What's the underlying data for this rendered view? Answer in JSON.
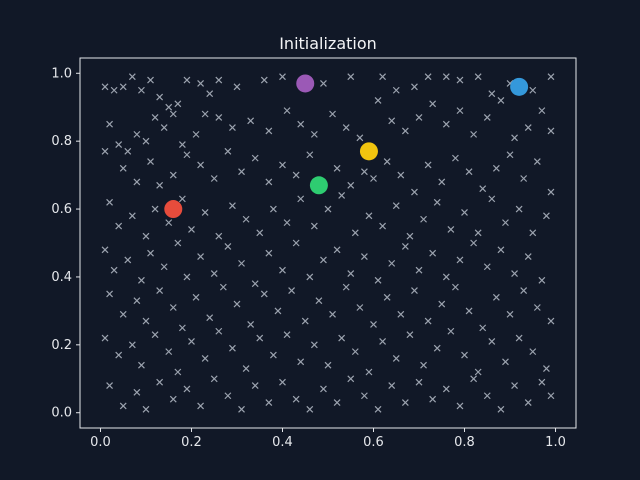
{
  "chart_data": {
    "type": "scatter",
    "title": "Initialization",
    "xlabel": "",
    "ylabel": "",
    "xlim": [
      -0.045,
      1.045
    ],
    "ylim": [
      -0.045,
      1.045
    ],
    "xticks": [
      0.0,
      0.2,
      0.4,
      0.6,
      0.8,
      1.0
    ],
    "yticks": [
      0.0,
      0.2,
      0.4,
      0.6,
      0.8,
      1.0
    ],
    "grid": false,
    "legend": "none",
    "colors": {
      "background": "#111827",
      "axes_edge": "#e5e7eb",
      "points": "#9ca3af"
    },
    "series": [
      {
        "marker": "x",
        "color": "#9ca3af",
        "points": [
          [
            0.01,
            0.96
          ],
          [
            0.03,
            0.95
          ],
          [
            0.05,
            0.96
          ],
          [
            0.07,
            0.99
          ],
          [
            0.09,
            0.95
          ],
          [
            0.11,
            0.98
          ],
          [
            0.13,
            0.93
          ],
          [
            0.15,
            0.9
          ],
          [
            0.17,
            0.91
          ],
          [
            0.19,
            0.98
          ],
          [
            0.22,
            0.97
          ],
          [
            0.24,
            0.94
          ],
          [
            0.26,
            0.98
          ],
          [
            0.3,
            0.96
          ],
          [
            0.36,
            0.98
          ],
          [
            0.4,
            0.99
          ],
          [
            0.49,
            0.97
          ],
          [
            0.55,
            0.99
          ],
          [
            0.62,
            0.99
          ],
          [
            0.65,
            0.95
          ],
          [
            0.69,
            0.96
          ],
          [
            0.72,
            0.99
          ],
          [
            0.76,
            0.99
          ],
          [
            0.79,
            0.98
          ],
          [
            0.83,
            0.99
          ],
          [
            0.86,
            0.94
          ],
          [
            0.9,
            0.97
          ],
          [
            0.95,
            0.95
          ],
          [
            0.99,
            0.99
          ],
          [
            0.02,
            0.85
          ],
          [
            0.04,
            0.79
          ],
          [
            0.06,
            0.77
          ],
          [
            0.08,
            0.82
          ],
          [
            0.1,
            0.8
          ],
          [
            0.12,
            0.87
          ],
          [
            0.14,
            0.84
          ],
          [
            0.16,
            0.88
          ],
          [
            0.18,
            0.79
          ],
          [
            0.21,
            0.82
          ],
          [
            0.23,
            0.88
          ],
          [
            0.26,
            0.87
          ],
          [
            0.29,
            0.84
          ],
          [
            0.33,
            0.86
          ],
          [
            0.37,
            0.83
          ],
          [
            0.41,
            0.89
          ],
          [
            0.44,
            0.85
          ],
          [
            0.47,
            0.82
          ],
          [
            0.51,
            0.88
          ],
          [
            0.54,
            0.84
          ],
          [
            0.57,
            0.81
          ],
          [
            0.61,
            0.92
          ],
          [
            0.64,
            0.86
          ],
          [
            0.67,
            0.83
          ],
          [
            0.7,
            0.87
          ],
          [
            0.73,
            0.91
          ],
          [
            0.76,
            0.85
          ],
          [
            0.79,
            0.89
          ],
          [
            0.82,
            0.82
          ],
          [
            0.85,
            0.87
          ],
          [
            0.88,
            0.92
          ],
          [
            0.91,
            0.81
          ],
          [
            0.94,
            0.84
          ],
          [
            0.97,
            0.89
          ],
          [
            0.99,
            0.83
          ],
          [
            0.01,
            0.77
          ],
          [
            0.05,
            0.72
          ],
          [
            0.08,
            0.68
          ],
          [
            0.11,
            0.74
          ],
          [
            0.13,
            0.67
          ],
          [
            0.16,
            0.7
          ],
          [
            0.19,
            0.76
          ],
          [
            0.22,
            0.73
          ],
          [
            0.25,
            0.69
          ],
          [
            0.28,
            0.77
          ],
          [
            0.31,
            0.71
          ],
          [
            0.34,
            0.75
          ],
          [
            0.37,
            0.68
          ],
          [
            0.4,
            0.73
          ],
          [
            0.43,
            0.7
          ],
          [
            0.46,
            0.76
          ],
          [
            0.52,
            0.72
          ],
          [
            0.55,
            0.67
          ],
          [
            0.58,
            0.71
          ],
          [
            0.6,
            0.69
          ],
          [
            0.63,
            0.74
          ],
          [
            0.66,
            0.7
          ],
          [
            0.69,
            0.65
          ],
          [
            0.72,
            0.73
          ],
          [
            0.75,
            0.68
          ],
          [
            0.78,
            0.75
          ],
          [
            0.81,
            0.71
          ],
          [
            0.84,
            0.66
          ],
          [
            0.87,
            0.72
          ],
          [
            0.9,
            0.76
          ],
          [
            0.93,
            0.69
          ],
          [
            0.96,
            0.74
          ],
          [
            0.99,
            0.65
          ],
          [
            0.02,
            0.62
          ],
          [
            0.04,
            0.55
          ],
          [
            0.07,
            0.58
          ],
          [
            0.1,
            0.52
          ],
          [
            0.12,
            0.6
          ],
          [
            0.15,
            0.56
          ],
          [
            0.18,
            0.63
          ],
          [
            0.2,
            0.54
          ],
          [
            0.23,
            0.59
          ],
          [
            0.26,
            0.52
          ],
          [
            0.29,
            0.61
          ],
          [
            0.32,
            0.57
          ],
          [
            0.35,
            0.53
          ],
          [
            0.38,
            0.6
          ],
          [
            0.41,
            0.56
          ],
          [
            0.44,
            0.63
          ],
          [
            0.47,
            0.55
          ],
          [
            0.5,
            0.6
          ],
          [
            0.53,
            0.64
          ],
          [
            0.56,
            0.53
          ],
          [
            0.59,
            0.58
          ],
          [
            0.62,
            0.55
          ],
          [
            0.65,
            0.61
          ],
          [
            0.68,
            0.52
          ],
          [
            0.71,
            0.57
          ],
          [
            0.74,
            0.62
          ],
          [
            0.77,
            0.54
          ],
          [
            0.8,
            0.59
          ],
          [
            0.83,
            0.53
          ],
          [
            0.86,
            0.63
          ],
          [
            0.89,
            0.56
          ],
          [
            0.92,
            0.6
          ],
          [
            0.95,
            0.53
          ],
          [
            0.98,
            0.58
          ],
          [
            0.01,
            0.48
          ],
          [
            0.03,
            0.42
          ],
          [
            0.06,
            0.45
          ],
          [
            0.09,
            0.39
          ],
          [
            0.11,
            0.47
          ],
          [
            0.14,
            0.43
          ],
          [
            0.17,
            0.5
          ],
          [
            0.19,
            0.4
          ],
          [
            0.22,
            0.46
          ],
          [
            0.25,
            0.41
          ],
          [
            0.28,
            0.49
          ],
          [
            0.31,
            0.44
          ],
          [
            0.34,
            0.38
          ],
          [
            0.37,
            0.47
          ],
          [
            0.4,
            0.42
          ],
          [
            0.43,
            0.5
          ],
          [
            0.46,
            0.4
          ],
          [
            0.49,
            0.45
          ],
          [
            0.52,
            0.48
          ],
          [
            0.55,
            0.41
          ],
          [
            0.58,
            0.46
          ],
          [
            0.61,
            0.39
          ],
          [
            0.64,
            0.44
          ],
          [
            0.67,
            0.49
          ],
          [
            0.7,
            0.42
          ],
          [
            0.73,
            0.47
          ],
          [
            0.76,
            0.4
          ],
          [
            0.79,
            0.45
          ],
          [
            0.82,
            0.5
          ],
          [
            0.85,
            0.43
          ],
          [
            0.88,
            0.48
          ],
          [
            0.91,
            0.41
          ],
          [
            0.94,
            0.46
          ],
          [
            0.97,
            0.39
          ],
          [
            0.02,
            0.35
          ],
          [
            0.05,
            0.29
          ],
          [
            0.08,
            0.33
          ],
          [
            0.1,
            0.27
          ],
          [
            0.13,
            0.36
          ],
          [
            0.16,
            0.31
          ],
          [
            0.18,
            0.25
          ],
          [
            0.21,
            0.34
          ],
          [
            0.24,
            0.28
          ],
          [
            0.27,
            0.37
          ],
          [
            0.3,
            0.32
          ],
          [
            0.33,
            0.26
          ],
          [
            0.36,
            0.35
          ],
          [
            0.39,
            0.3
          ],
          [
            0.42,
            0.36
          ],
          [
            0.45,
            0.27
          ],
          [
            0.48,
            0.33
          ],
          [
            0.51,
            0.29
          ],
          [
            0.54,
            0.37
          ],
          [
            0.57,
            0.31
          ],
          [
            0.6,
            0.26
          ],
          [
            0.63,
            0.34
          ],
          [
            0.66,
            0.29
          ],
          [
            0.69,
            0.36
          ],
          [
            0.72,
            0.27
          ],
          [
            0.75,
            0.32
          ],
          [
            0.78,
            0.37
          ],
          [
            0.81,
            0.3
          ],
          [
            0.84,
            0.25
          ],
          [
            0.87,
            0.34
          ],
          [
            0.9,
            0.29
          ],
          [
            0.93,
            0.36
          ],
          [
            0.96,
            0.31
          ],
          [
            0.99,
            0.27
          ],
          [
            0.01,
            0.22
          ],
          [
            0.04,
            0.17
          ],
          [
            0.07,
            0.2
          ],
          [
            0.09,
            0.14
          ],
          [
            0.12,
            0.23
          ],
          [
            0.15,
            0.18
          ],
          [
            0.17,
            0.12
          ],
          [
            0.2,
            0.21
          ],
          [
            0.23,
            0.16
          ],
          [
            0.26,
            0.24
          ],
          [
            0.29,
            0.19
          ],
          [
            0.32,
            0.13
          ],
          [
            0.35,
            0.22
          ],
          [
            0.38,
            0.17
          ],
          [
            0.41,
            0.23
          ],
          [
            0.44,
            0.15
          ],
          [
            0.47,
            0.2
          ],
          [
            0.5,
            0.14
          ],
          [
            0.53,
            0.22
          ],
          [
            0.56,
            0.18
          ],
          [
            0.59,
            0.12
          ],
          [
            0.62,
            0.21
          ],
          [
            0.65,
            0.16
          ],
          [
            0.68,
            0.23
          ],
          [
            0.71,
            0.14
          ],
          [
            0.74,
            0.19
          ],
          [
            0.77,
            0.24
          ],
          [
            0.8,
            0.17
          ],
          [
            0.83,
            0.12
          ],
          [
            0.86,
            0.21
          ],
          [
            0.89,
            0.15
          ],
          [
            0.92,
            0.22
          ],
          [
            0.95,
            0.18
          ],
          [
            0.98,
            0.13
          ],
          [
            0.02,
            0.08
          ],
          [
            0.05,
            0.02
          ],
          [
            0.08,
            0.06
          ],
          [
            0.1,
            0.01
          ],
          [
            0.13,
            0.09
          ],
          [
            0.16,
            0.04
          ],
          [
            0.19,
            0.07
          ],
          [
            0.22,
            0.02
          ],
          [
            0.25,
            0.1
          ],
          [
            0.28,
            0.05
          ],
          [
            0.31,
            0.01
          ],
          [
            0.34,
            0.08
          ],
          [
            0.37,
            0.03
          ],
          [
            0.4,
            0.09
          ],
          [
            0.43,
            0.04
          ],
          [
            0.46,
            0.01
          ],
          [
            0.49,
            0.07
          ],
          [
            0.52,
            0.03
          ],
          [
            0.55,
            0.1
          ],
          [
            0.58,
            0.05
          ],
          [
            0.61,
            0.01
          ],
          [
            0.64,
            0.08
          ],
          [
            0.67,
            0.03
          ],
          [
            0.7,
            0.09
          ],
          [
            0.73,
            0.04
          ],
          [
            0.76,
            0.07
          ],
          [
            0.79,
            0.02
          ],
          [
            0.82,
            0.1
          ],
          [
            0.85,
            0.05
          ],
          [
            0.88,
            0.01
          ],
          [
            0.91,
            0.08
          ],
          [
            0.94,
            0.03
          ],
          [
            0.97,
            0.09
          ],
          [
            0.99,
            0.05
          ]
        ]
      }
    ],
    "centroids": [
      {
        "x": 0.16,
        "y": 0.6,
        "color": "#e74c3c"
      },
      {
        "x": 0.45,
        "y": 0.97,
        "color": "#9b59b6"
      },
      {
        "x": 0.48,
        "y": 0.67,
        "color": "#2ecc71"
      },
      {
        "x": 0.59,
        "y": 0.77,
        "color": "#f1c40f"
      },
      {
        "x": 0.92,
        "y": 0.96,
        "color": "#3498db"
      }
    ]
  }
}
